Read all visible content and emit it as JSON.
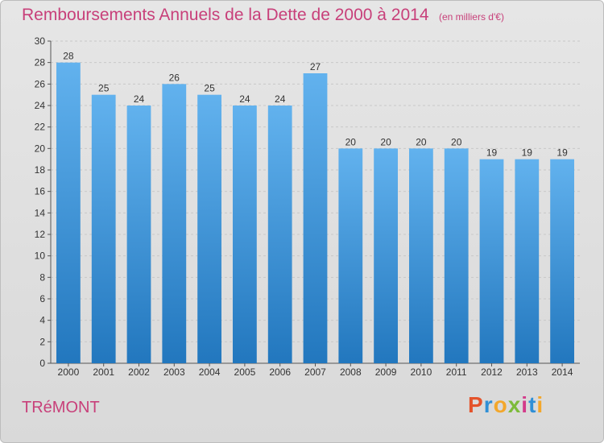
{
  "header": {
    "title": "Remboursements Annuels de la Dette de 2000 à 2014",
    "unit": "(en milliers d'€)"
  },
  "footer": {
    "commune": "TRéMONT",
    "logo_letters": [
      "P",
      "r",
      "o",
      "x",
      "i",
      "t",
      "i"
    ],
    "logo_colors": [
      "#e4532b",
      "#2f8fd6",
      "#f3a72b",
      "#7dbb3a",
      "#d33b8a",
      "#2f8fd6",
      "#f3a72b"
    ]
  },
  "colors": {
    "title": "#c8407a",
    "bar_light": "#62b2ee",
    "bar_dark": "#2277be",
    "grid": "#c8c8c8",
    "axis": "#555555"
  },
  "chart_data": {
    "type": "bar",
    "title": "Remboursements Annuels de la Dette de 2000 à 2014",
    "xlabel": "",
    "ylabel": "",
    "categories": [
      "2000",
      "2001",
      "2002",
      "2003",
      "2004",
      "2005",
      "2006",
      "2007",
      "2008",
      "2009",
      "2010",
      "2011",
      "2012",
      "2013",
      "2014"
    ],
    "values": [
      28,
      25,
      24,
      26,
      25,
      24,
      24,
      27,
      20,
      20,
      20,
      20,
      19,
      19,
      19
    ],
    "value_labels": [
      "28",
      "25",
      "24",
      "26",
      "25",
      "24",
      "24",
      "27",
      "20",
      "20",
      "20",
      "20",
      "19",
      "19",
      "19"
    ],
    "ylim": [
      0,
      30
    ],
    "yticks": [
      0,
      2,
      4,
      6,
      8,
      10,
      12,
      14,
      16,
      18,
      20,
      22,
      24,
      26,
      28,
      30
    ],
    "grid": true
  }
}
